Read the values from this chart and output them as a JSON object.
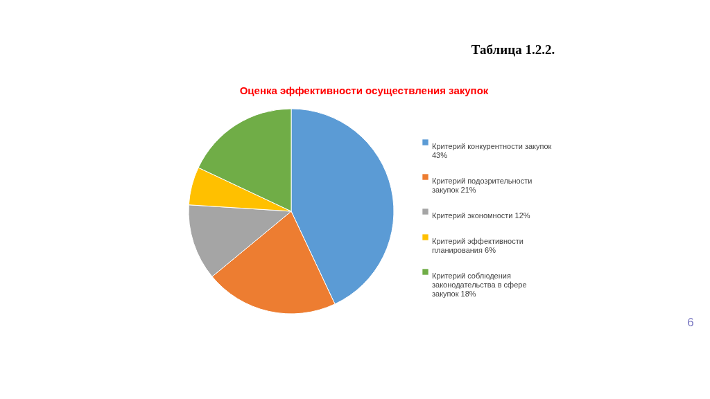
{
  "chart_data": {
    "type": "pie",
    "title": "Оценка эффективности осуществления закупок",
    "annotations": [
      "Таблица 1.2.2.",
      "6"
    ],
    "categories": [
      "Критерий конкурентности закупок",
      "Критерий подозрительности закупок",
      "Критерий экономности",
      "Критерий эффективности планирования",
      "Критерий соблюдения законодательства в сфере закупок"
    ],
    "values": [
      43,
      21,
      12,
      6,
      18
    ],
    "value_labels": [
      "43%",
      "21%",
      "12%",
      "6%",
      "18%"
    ],
    "colors": [
      "#5b9bd5",
      "#ed7d31",
      "#a5a5a5",
      "#ffc000",
      "#70ad47"
    ],
    "legend": "right"
  }
}
